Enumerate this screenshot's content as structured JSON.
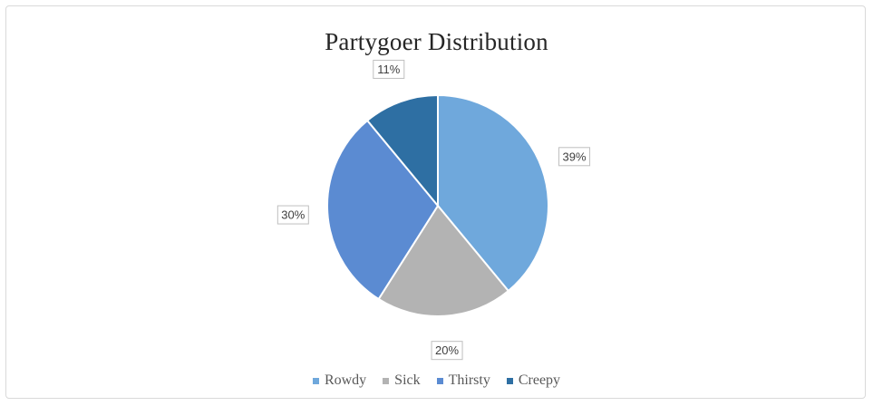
{
  "chart_data": {
    "type": "pie",
    "title": "Partygoer Distribution",
    "categories": [
      "Rowdy",
      "Sick",
      "Thirsty",
      "Creepy"
    ],
    "values": [
      39,
      20,
      30,
      11
    ],
    "data_labels": [
      "39%",
      "20%",
      "30%",
      "11%"
    ],
    "colors": [
      "#6fa8dc",
      "#b3b3b3",
      "#5b8bd2",
      "#2e6fa3"
    ],
    "legend_position": "bottom",
    "start_angle_deg": 0,
    "direction": "clockwise"
  }
}
